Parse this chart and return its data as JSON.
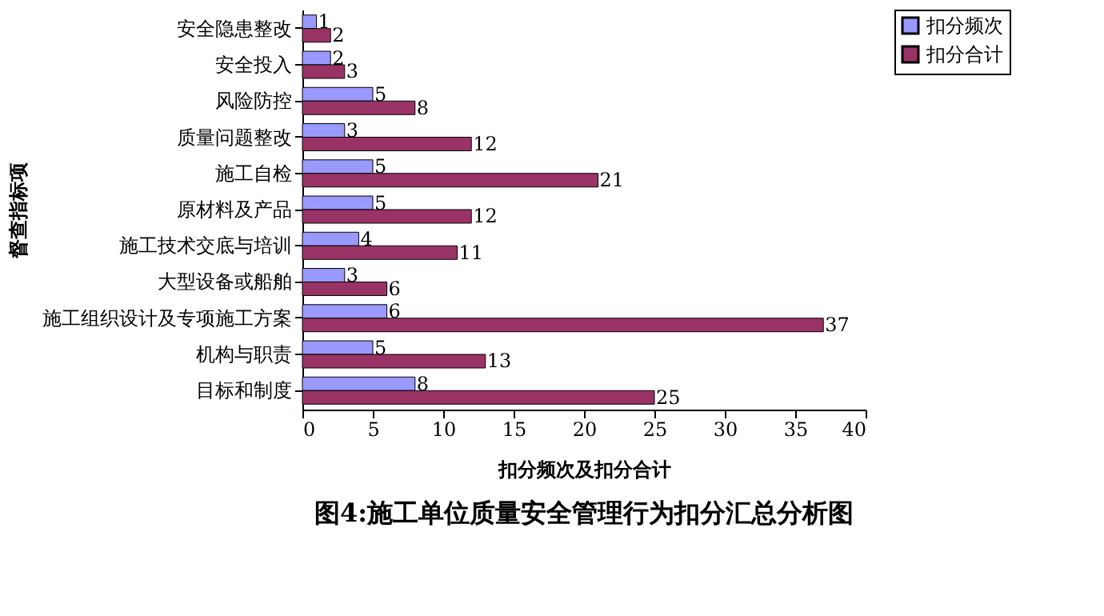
{
  "chart_data": {
    "type": "bar",
    "orientation": "horizontal",
    "title": "图4:施工单位质量安全管理行为扣分汇总分析图",
    "xlabel": "扣分频次及扣分合计",
    "ylabel": "督查指标项",
    "categories": [
      "安全隐患整改",
      "安全投入",
      "风险防控",
      "质量问题整改",
      "施工自检",
      "原材料及产品",
      "施工技术交底与培训",
      "大型设备或船舶",
      "施工组织设计及专项施工方案",
      "机构与职责",
      "目标和制度"
    ],
    "series": [
      {
        "name": "扣分频次",
        "color": "#9999ff",
        "values": [
          1,
          2,
          5,
          3,
          5,
          5,
          4,
          3,
          6,
          5,
          8
        ]
      },
      {
        "name": "扣分合计",
        "color": "#993366",
        "values": [
          2,
          3,
          8,
          12,
          21,
          12,
          11,
          6,
          37,
          13,
          25
        ]
      }
    ],
    "xlim": [
      0,
      40
    ],
    "xticks": [
      0,
      5,
      10,
      15,
      20,
      25,
      30,
      35,
      40
    ],
    "data_labels": true,
    "legend": "right",
    "grid": false
  }
}
